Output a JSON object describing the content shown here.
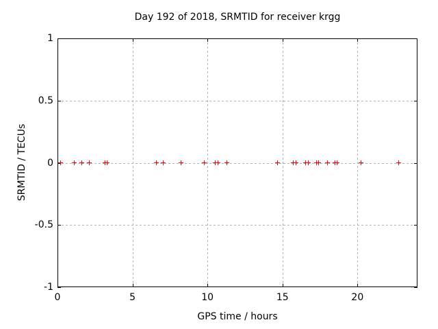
{
  "chart_data": {
    "type": "scatter",
    "title": "Day 192 of 2018, SRMTID for receiver krgg",
    "xlabel": "GPS time / hours",
    "ylabel": "SRMTID / TECUs",
    "xlim": [
      0,
      24
    ],
    "ylim": [
      -1,
      1
    ],
    "xticks": [
      0,
      5,
      10,
      15,
      20
    ],
    "yticks": [
      1,
      0.5,
      0,
      -0.5,
      -1
    ],
    "grid": true,
    "legend": false,
    "marker_style": "plus",
    "marker_color": "#ff0000",
    "grid_color": "#b0b0b0",
    "frame_color": "#000000",
    "background_color": "#ffffff",
    "series": [
      {
        "name": "SRMTID",
        "x": [
          0.2,
          1.1,
          1.6,
          2.1,
          3.15,
          3.3,
          6.6,
          7.05,
          8.25,
          9.8,
          10.5,
          10.7,
          11.3,
          14.65,
          15.7,
          15.9,
          16.55,
          16.7,
          17.25,
          17.4,
          18.0,
          18.5,
          18.65,
          20.25,
          22.75
        ],
        "y": [
          0,
          0,
          0,
          0,
          0,
          0,
          0,
          0,
          0,
          0,
          0,
          0,
          0,
          0,
          0,
          0,
          0,
          0,
          0,
          0,
          0,
          0,
          0,
          0,
          0
        ]
      }
    ]
  }
}
